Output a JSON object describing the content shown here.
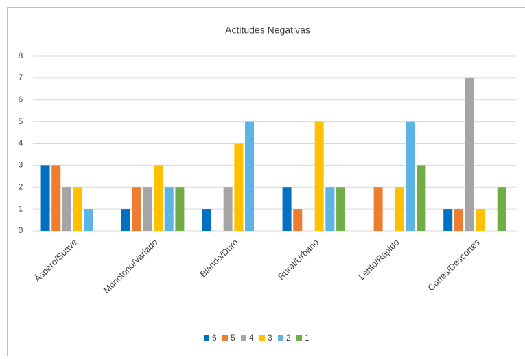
{
  "chart_data": {
    "type": "bar",
    "title": "Actitudes Negativas",
    "categories": [
      "Áspero/Suave",
      "Monótono/Variado",
      "Blando/Duro",
      "Rural/Urbano",
      "Lento/Rápido",
      "Cortés/Descortés"
    ],
    "series": [
      {
        "name": "6",
        "color": "#0070c0",
        "values": [
          3,
          1,
          1,
          2,
          0,
          1
        ]
      },
      {
        "name": "5",
        "color": "#ed7d31",
        "values": [
          3,
          2,
          0,
          1,
          2,
          1
        ]
      },
      {
        "name": "4",
        "color": "#a5a5a5",
        "values": [
          2,
          2,
          2,
          0,
          0,
          7
        ]
      },
      {
        "name": "3",
        "color": "#ffc000",
        "values": [
          2,
          3,
          4,
          5,
          2,
          1
        ]
      },
      {
        "name": "2",
        "color": "#5bb4e5",
        "values": [
          1,
          2,
          5,
          2,
          5,
          0
        ]
      },
      {
        "name": "1",
        "color": "#70ad47",
        "values": [
          0,
          2,
          0,
          2,
          3,
          2
        ]
      }
    ],
    "ylim": [
      0,
      8
    ],
    "yticks": [
      0,
      1,
      2,
      3,
      4,
      5,
      6,
      7,
      8
    ],
    "grid": true,
    "legend": "bottom"
  }
}
